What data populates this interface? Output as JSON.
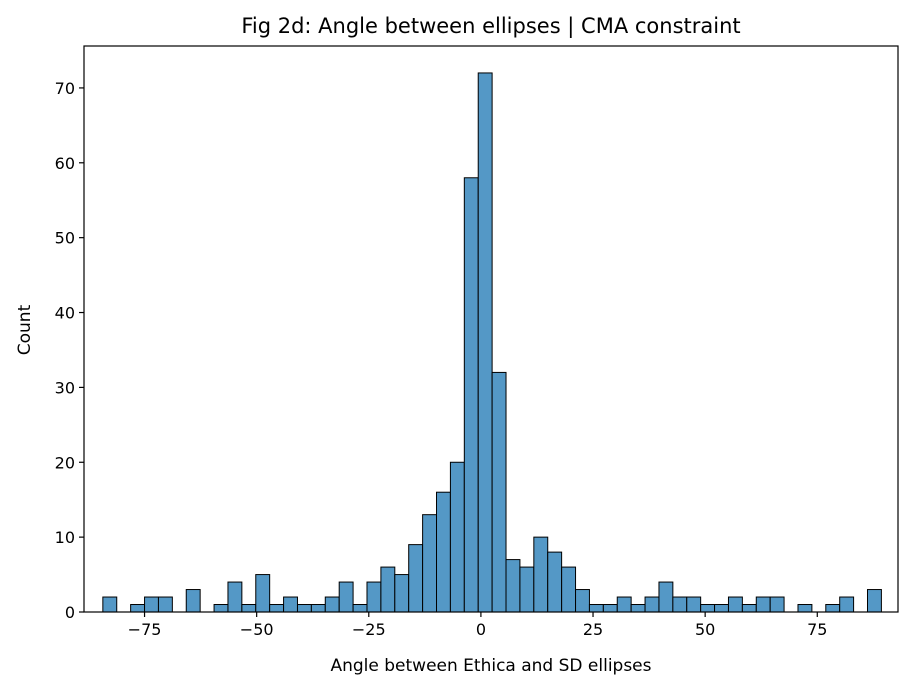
{
  "chart_data": {
    "type": "bar",
    "title": "Fig 2d: Angle between ellipses | CMA constraint",
    "xlabel": "Angle between Ethica and SD ellipses",
    "ylabel": "Count",
    "xlim": [
      -88.5,
      93
    ],
    "ylim": [
      0,
      75.6
    ],
    "xticks": [
      -75,
      -50,
      -25,
      0,
      25,
      50,
      75
    ],
    "xtick_labels": [
      "−75",
      "−50",
      "−25",
      "0",
      "25",
      "50",
      "75"
    ],
    "yticks": [
      0,
      10,
      20,
      30,
      40,
      50,
      60,
      70
    ],
    "ytick_labels": [
      "0",
      "10",
      "20",
      "30",
      "40",
      "50",
      "60",
      "70"
    ],
    "grid": false,
    "bin_width": 3.1,
    "bin_lefts": [
      -84.3,
      -81.2,
      -78.1,
      -75.0,
      -71.9,
      -68.8,
      -65.7,
      -62.6,
      -59.5,
      -56.4,
      -53.3,
      -50.2,
      -47.1,
      -44.0,
      -40.9,
      -37.8,
      -34.7,
      -31.6,
      -28.5,
      -25.4,
      -22.3,
      -19.2,
      -16.1,
      -13.0,
      -9.9,
      -6.8,
      -3.7,
      -0.6,
      2.5,
      5.6,
      8.7,
      11.8,
      14.9,
      18.0,
      21.1,
      24.2,
      27.3,
      30.4,
      33.5,
      36.6,
      39.7,
      42.8,
      45.9,
      49.0,
      52.1,
      55.2,
      58.3,
      61.4,
      64.5,
      67.6,
      70.7,
      73.8,
      76.9,
      80.0,
      83.1,
      86.2
    ],
    "values": [
      2,
      0,
      1,
      2,
      2,
      0,
      3,
      0,
      1,
      4,
      1,
      5,
      1,
      2,
      1,
      1,
      2,
      4,
      1,
      4,
      6,
      5,
      9,
      13,
      16,
      20,
      58,
      72,
      32,
      7,
      6,
      10,
      8,
      6,
      3,
      1,
      1,
      2,
      1,
      2,
      4,
      2,
      2,
      1,
      1,
      2,
      1,
      2,
      2,
      0,
      1,
      0,
      1,
      2,
      0,
      3
    ],
    "bar_color": "#5498c6",
    "edge_color": "#000000"
  }
}
